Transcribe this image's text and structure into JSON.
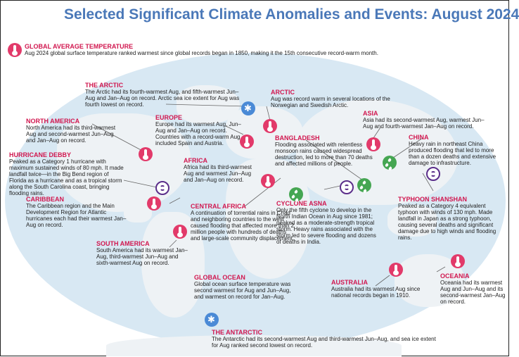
{
  "title": "Selected Significant Climate Anomalies and Events: August 2024",
  "global": {
    "heading": "GLOBAL AVERAGE TEMPERATURE",
    "text": "Aug 2024 global surface temperature ranked warmest since global records began in 1850, making it the 15th consecutive record-warm month."
  },
  "events": {
    "the_arctic": {
      "heading": "THE ARCTIC",
      "text": "The Arctic had its fourth-warmest Aug, and fifth-warmest Jun–Aug and Jan–Aug on record. Arctic sea ice extent for Aug was fourth lowest on record."
    },
    "arctic": {
      "heading": "ARCTIC",
      "text": "Aug was record warm in several locations of the Norwegian and Swedish Arctic."
    },
    "north_america": {
      "heading": "NORTH AMERICA",
      "text": "North America had its third-warmest Aug and second-warmest Jun–Aug and Jan–Aug on record."
    },
    "europe": {
      "heading": "EUROPE",
      "text": "Europe had its warmest Aug, Jun–Aug and Jan–Aug on record. Countries with a record-warm Aug included Spain and Austria."
    },
    "asia": {
      "heading": "ASIA",
      "text": "Asia had its second-warmest Aug, warmest Jun–Aug and fourth-warmest Jan–Aug on record."
    },
    "bangladesh": {
      "heading": "BANGLADESH",
      "text": "Flooding associated with relentless monsoon rains caused widespread destruction, led to more than 70 deaths and affected millions of people."
    },
    "china": {
      "heading": "CHINA",
      "text": "Heavy rain in northeast China produced flooding that led to more than a dozen deaths and extensive damage to infrastructure."
    },
    "hurricane_debby": {
      "heading": "HURRICANE DEBBY",
      "text": "Peaked as a Category 1 hurricane with maximum sustained winds of 80 mph. It made landfall twice—in the Big Bend region of Florida as a hurricane and as a tropical storm along the South Carolina coast, bringing flooding rains."
    },
    "africa": {
      "heading": "AFRICA",
      "text": "Africa had its third-warmest Aug and warmest Jun–Aug and Jan–Aug on record."
    },
    "caribbean": {
      "heading": "CARIBBEAN",
      "text": "The Caribbean region and the Main Development Region for Atlantic hurricanes each had their warmest Jan–Aug on record."
    },
    "cyclone_asna": {
      "heading": "CYCLONE ASNA",
      "text": "Only the fifth cyclone to develop in the North Indian Ocean in Aug since 1981; peaked as a moderate-strength tropical storm. Heavy rains associated with the storm led to severe flooding and dozens of deaths in India."
    },
    "typhoon_shanshan": {
      "heading": "TYPHOON SHANSHAN",
      "text": "Peaked as a Category 4 equivalent typhoon with winds of 130 mph. Made landfall in Japan as a strong typhoon, causing several deaths and significant damage due to high winds and flooding rains."
    },
    "central_africa": {
      "heading": "CENTRAL AFRICA",
      "text": "A continuation of torrential rains in Chad and neighboring countries to the west caused flooding that affected more than 2 million people with hundreds of deaths and large-scale community displacement."
    },
    "south_america": {
      "heading": "SOUTH AMERICA",
      "text": "South America had its warmest Jan–Aug, third-warmest Jun–Aug and sixth-warmest Aug on record."
    },
    "global_ocean": {
      "heading": "GLOBAL OCEAN",
      "text": "Global ocean surface temperature was second warmest for Aug and Jun–Aug, and warmest on record for Jan–Aug."
    },
    "australia": {
      "heading": "AUSTRALIA",
      "text": "Australia had its warmest Aug since national records began in 1910."
    },
    "oceania": {
      "heading": "OCEANIA",
      "text": "Oceania had its warmest Aug and Jun–Aug and its second-warmest Jan–Aug on record."
    },
    "the_antarctic": {
      "heading": "THE ANTARCTIC",
      "text": "The Antarctic had its second-warmest Aug and third-warmest Jun–Aug, and sea ice extent for Aug ranked second lowest on record."
    }
  },
  "colors": {
    "title": "#4a78b8",
    "heading": "#d1174f",
    "ocean": "#d8e8f3",
    "land": "#eef2f5",
    "warm_icon": "#e23a6a",
    "flood_icon": "#45a652",
    "storm_icon": "#5b2e8a",
    "ice_icon": "#4a8ad6"
  },
  "icons": {
    "warm": "thermometer-icon",
    "flood": "rain-drops-icon",
    "storm": "cyclone-icon",
    "ice": "snowflake-icon"
  }
}
